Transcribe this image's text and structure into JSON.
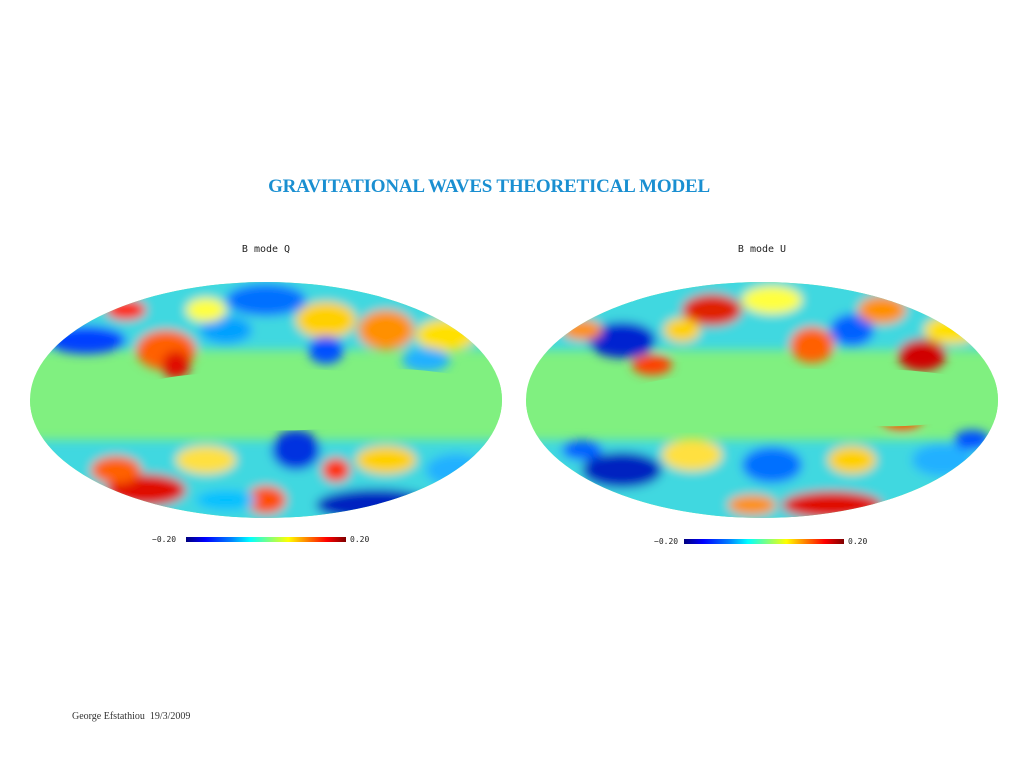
{
  "slide": {
    "title": "GRAVITATIONAL WAVES THEORETICAL MODEL",
    "footer": "George Efstathiou  19/3/2009"
  },
  "maps": [
    {
      "title": "B mode Q",
      "colorbar": {
        "min_label": "−0.20",
        "max_label": "0.20"
      }
    },
    {
      "title": "B mode U",
      "colorbar": {
        "min_label": "−0.20",
        "max_label": "0.20"
      }
    }
  ],
  "colors": {
    "title": "#1a8fd1",
    "masked_band": "#80f080"
  }
}
